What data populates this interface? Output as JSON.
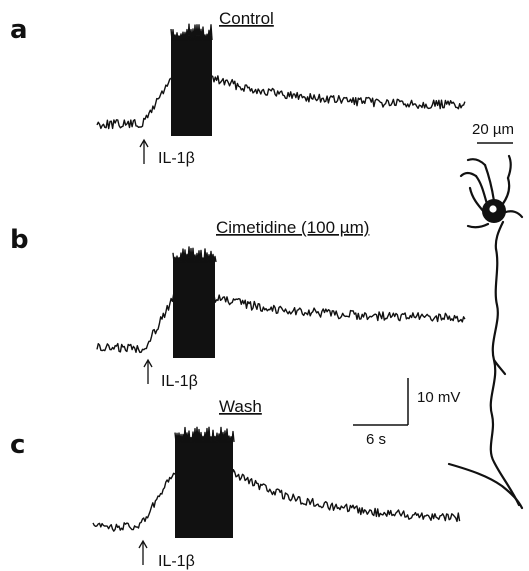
{
  "chart_data": {
    "type": "line",
    "panels": [
      {
        "letter": "a",
        "condition": "Control",
        "stimulus": "IL-1β"
      },
      {
        "letter": "b",
        "condition": "Cimetidine  (100 µm)",
        "stimulus": "IL-1β"
      },
      {
        "letter": "c",
        "condition": "Wash",
        "stimulus": "IL-1β"
      }
    ],
    "scale_bars": {
      "time": "6 s",
      "voltage": "10 mV",
      "image": "20 µm"
    }
  },
  "colors": {
    "trace": "#111111",
    "background": "#ffffff"
  }
}
